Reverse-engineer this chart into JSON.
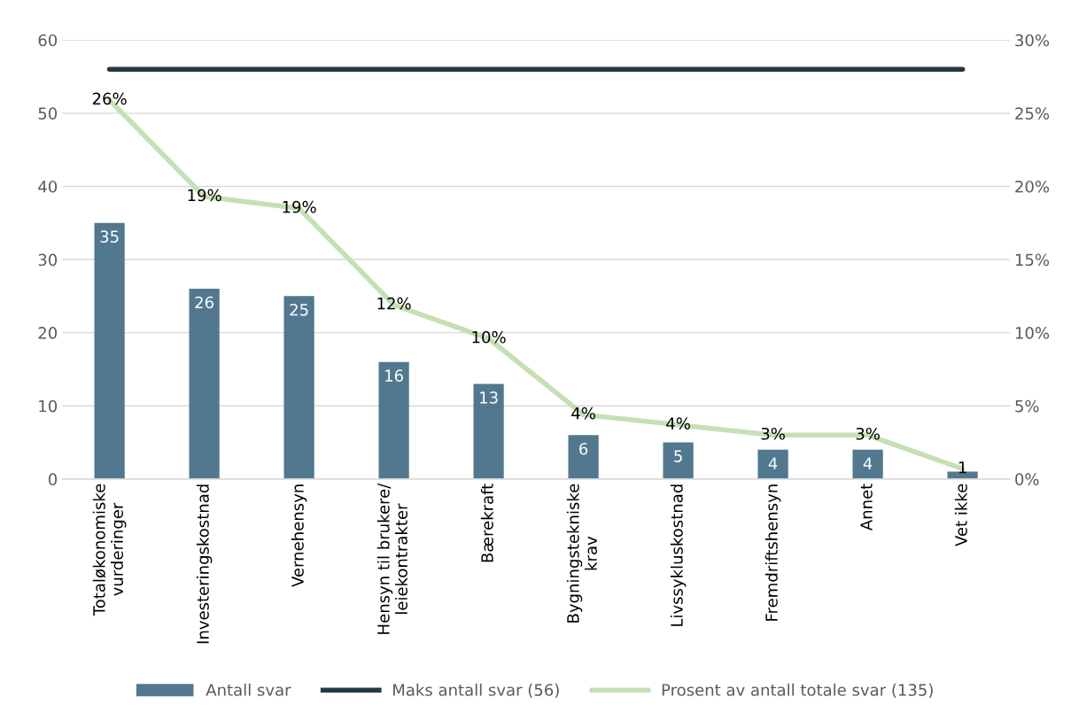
{
  "chart_data": {
    "type": "bar",
    "categories": [
      "Totaløkonomiske\nvurderinger",
      "Investeringskostnad",
      "Vernehensyn",
      "Hensyn til brukere/\nleiekontrakter",
      "Bærekraft",
      "Bygningstekniske\nkrav",
      "Livssykluskostnad",
      "Fremdriftshensyn",
      "Annet",
      "Vet ikke"
    ],
    "series": [
      {
        "name": "Antall svar",
        "color": "#52788f",
        "values": [
          35,
          26,
          25,
          16,
          13,
          6,
          5,
          4,
          4,
          1
        ],
        "value_labels": [
          "35",
          "26",
          "25",
          "16",
          "13",
          "6",
          "5",
          "4",
          "4",
          null
        ]
      },
      {
        "name": "Maks antall svar (56)",
        "type": "line",
        "color": "#233a45",
        "values": [
          56,
          56,
          56,
          56,
          56,
          56,
          56,
          56,
          56,
          56
        ]
      },
      {
        "name": "Prosent av antall totale svar (135)",
        "type": "line",
        "axis": "y2",
        "color": "#c5e0b4",
        "values": [
          25.9,
          19.3,
          18.5,
          11.9,
          9.6,
          4.4,
          3.7,
          3.0,
          3.0,
          0.7
        ],
        "value_labels": [
          "26%",
          "19%",
          "19%",
          "12%",
          "10%",
          "4%",
          "4%",
          "3%",
          "3%",
          "1"
        ]
      }
    ],
    "ylim": [
      0,
      60
    ],
    "yticks": [
      0,
      10,
      20,
      30,
      40,
      50,
      60
    ],
    "y2lim": [
      0,
      30
    ],
    "y2ticks": [
      {
        "value": 0,
        "label": "0%"
      },
      {
        "value": 5,
        "label": "5%"
      },
      {
        "value": 10,
        "label": "10%"
      },
      {
        "value": 15,
        "label": "15%"
      },
      {
        "value": 20,
        "label": "20%"
      },
      {
        "value": 25,
        "label": "25%"
      },
      {
        "value": 30,
        "label": "30%"
      }
    ],
    "grid": "y",
    "legend": "bottom"
  }
}
